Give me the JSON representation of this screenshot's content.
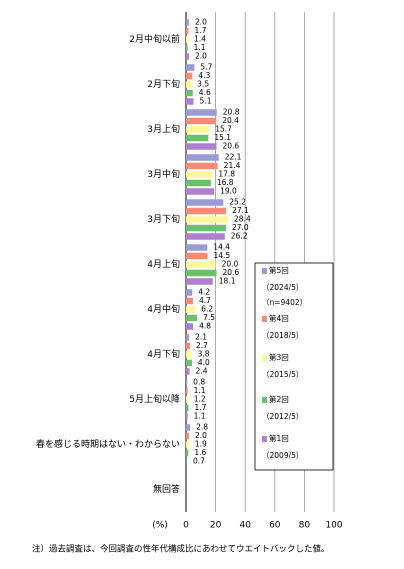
{
  "chart_data": {
    "type": "hbar",
    "categories": [
      "2月中旬以前",
      "2月下旬",
      "3月上旬",
      "3月中旬",
      "3月下旬",
      "4月上旬",
      "4月中旬",
      "4月下旬",
      "5月上旬以降",
      "春を感じる時期はない・わからない",
      "無回答"
    ],
    "series": [
      {
        "name": "第5回",
        "legend_detail": [
          "（2024/5）",
          "（n=9402）"
        ],
        "color": "#9a9ad4",
        "values": [
          2.0,
          5.7,
          20.8,
          22.1,
          25.2,
          14.4,
          4.2,
          2.1,
          0.8,
          2.8,
          null
        ],
        "value_labels": [
          "2.0",
          "5.7",
          "20.8",
          "22.1",
          "25.2",
          "14.4",
          "4.2",
          "2.1",
          "0.8",
          "2.8",
          null
        ]
      },
      {
        "name": "第4回",
        "legend_detail": [
          "（2018/5）"
        ],
        "color": "#f58c78",
        "values": [
          1.7,
          4.3,
          20.4,
          21.4,
          27.1,
          14.5,
          4.7,
          2.7,
          1.1,
          2.0,
          null
        ],
        "value_labels": [
          "1.7",
          "4.3",
          "20.4",
          "21.4",
          "27.1",
          "14.5",
          "4.7",
          "2.7",
          "1.1",
          "2.0",
          null
        ]
      },
      {
        "name": "第3回",
        "legend_detail": [
          "（2015/5）"
        ],
        "color": "#fff799",
        "values": [
          1.4,
          3.5,
          15.7,
          17.8,
          28.4,
          20.0,
          6.2,
          3.8,
          1.2,
          1.9,
          null
        ],
        "value_labels": [
          "1.4",
          "3.5",
          "15.7",
          "17.8",
          "28.4",
          "20.0",
          "6.2",
          "3.8",
          "1.2",
          "1.9",
          null
        ]
      },
      {
        "name": "第2回",
        "legend_detail": [
          "（2012/5）"
        ],
        "color": "#6cbf6c",
        "values": [
          1.1,
          4.6,
          15.1,
          16.8,
          27.0,
          20.6,
          7.5,
          4.0,
          1.7,
          1.6,
          null
        ],
        "value_labels": [
          "1.1",
          "4.6",
          "15.1",
          "16.8",
          "27.0",
          "20.6",
          "7.5",
          "4.0",
          "1.7",
          "1.6",
          null
        ]
      },
      {
        "name": "第1回",
        "legend_detail": [
          "（2009/5）"
        ],
        "color": "#b07fcf",
        "values": [
          2.0,
          5.1,
          20.6,
          19.0,
          26.2,
          18.1,
          4.8,
          2.4,
          1.1,
          0.7,
          null
        ],
        "value_labels": [
          "2.0",
          "5.1",
          "20.6",
          "19.0",
          "26.2",
          "18.1",
          "4.8",
          "2.4",
          "1.1",
          "0.7",
          null
        ]
      }
    ],
    "x_label": "(%)",
    "xlim": [
      0,
      100
    ],
    "xticks": [
      0,
      20,
      40,
      60,
      80,
      100
    ],
    "grid": true,
    "legend_position": "right",
    "note": "注）過去調査は、今回調査の性年代構成比にあわせてウエイトバックした値。"
  }
}
